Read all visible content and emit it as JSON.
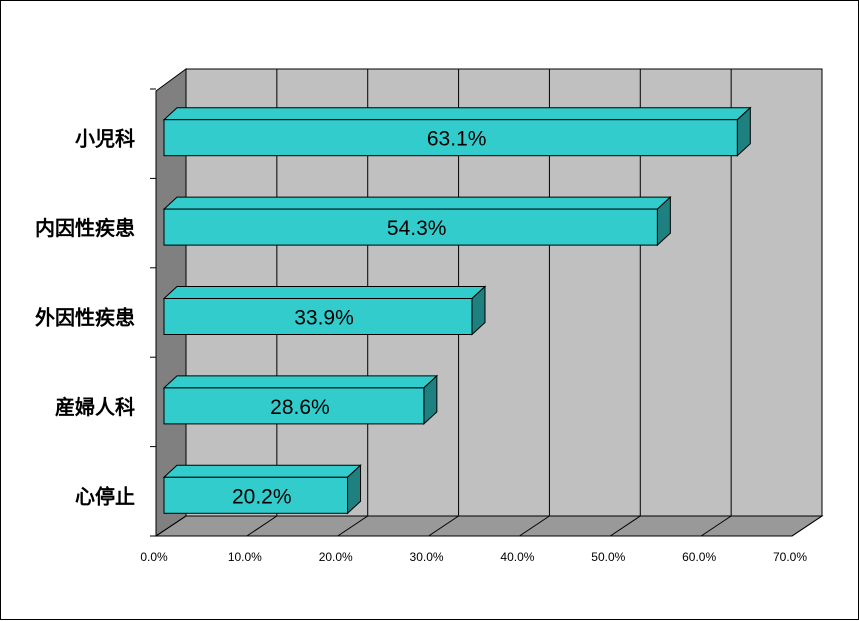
{
  "chart_data": {
    "type": "bar",
    "orientation": "horizontal",
    "three_d": true,
    "categories": [
      "小児科",
      "内因性疾患",
      "外因性疾患",
      "産婦人科",
      "心停止"
    ],
    "values": [
      63.1,
      54.3,
      33.9,
      28.6,
      20.2
    ],
    "data_labels": [
      "63.1%",
      "54.3%",
      "33.9%",
      "28.6%",
      "20.2%"
    ],
    "xlim": [
      0,
      70
    ],
    "x_ticks": [
      0,
      10,
      20,
      30,
      40,
      50,
      60,
      70
    ],
    "x_tick_labels": [
      "0.0%",
      "10.0%",
      "20.0%",
      "30.0%",
      "40.0%",
      "50.0%",
      "60.0%",
      "70.0%"
    ],
    "grid": true,
    "legend": "none",
    "colors": {
      "bar_front": "#33cccc",
      "bar_top": "#33cccc",
      "bar_side": "#1f8080",
      "wall": "#c0c0c0",
      "floor": "#999999",
      "left_wall": "#808080"
    }
  }
}
